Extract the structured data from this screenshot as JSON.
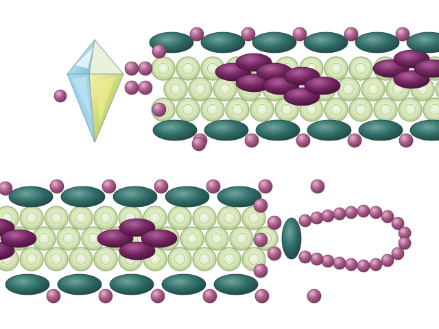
{
  "photo": {
    "subject": "",
    "background_color": "#ffffff"
  },
  "palette": {
    "teal": "#2f6b66",
    "teal_highlight": "#5f9a93",
    "teal_shadow": "#1e4643",
    "pink": "#b0628f",
    "pink_highlight": "#dca5c6",
    "purple": "#74265f",
    "purple_highlight": "#a55391",
    "glass": "#d8e6b8",
    "glass_ring": "#9eb97d",
    "crystal": "#dce8d6"
  },
  "bracelet_bands": [
    {
      "id": "upper",
      "has_crystal_clasp": true
    },
    {
      "id": "lower",
      "has_loop_clasp": true
    }
  ]
}
